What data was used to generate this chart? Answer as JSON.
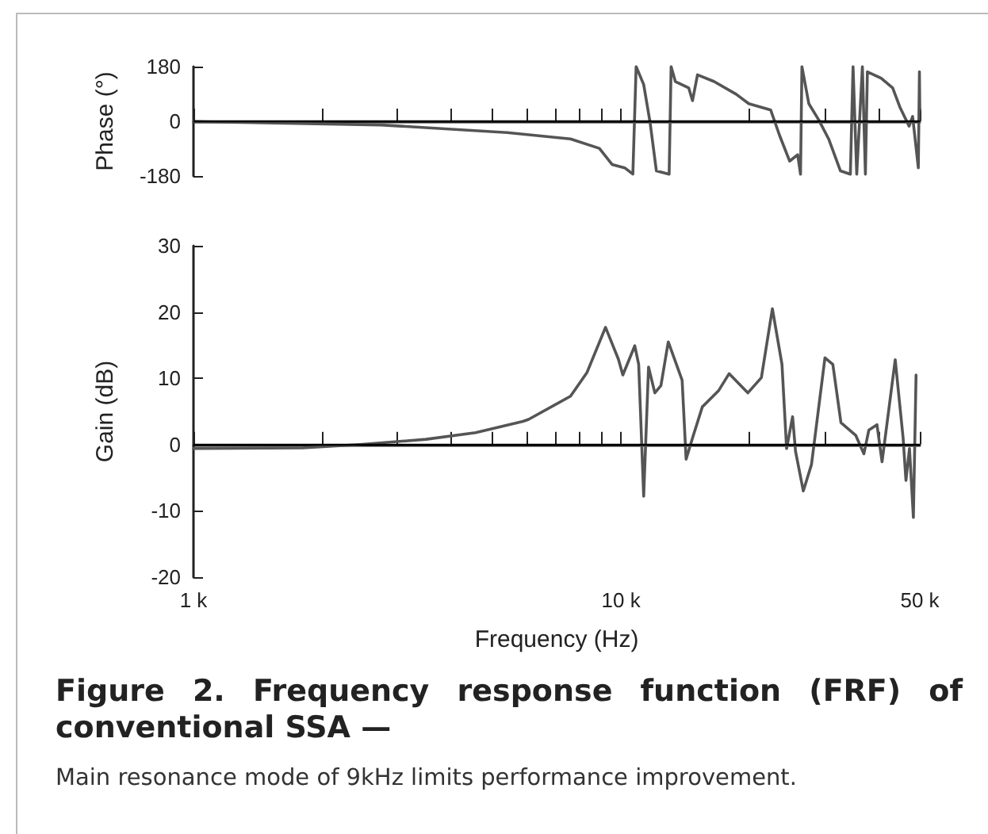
{
  "chart_data": [
    {
      "type": "line",
      "ylabel": "Phase (°)",
      "xlim": [
        1000,
        50000
      ],
      "ylim": [
        -180,
        180
      ],
      "yticks": [
        -180,
        0,
        180
      ],
      "log": "x",
      "grid": false,
      "marker": "none",
      "line_style": "solid",
      "tick_labels": "y",
      "xticks": [
        {
          "value": 1000,
          "label": null
        },
        {
          "value": 2000,
          "label": null
        },
        {
          "value": 3000,
          "label": null
        },
        {
          "value": 4000,
          "label": null
        },
        {
          "value": 5000,
          "label": null
        },
        {
          "value": 6000,
          "label": null
        },
        {
          "value": 7000,
          "label": null
        },
        {
          "value": 8000,
          "label": null
        },
        {
          "value": 9000,
          "label": null
        },
        {
          "value": 10000,
          "label": null
        },
        {
          "value": 20000,
          "label": null
        },
        {
          "value": 30000,
          "label": null
        },
        {
          "value": 40000,
          "label": null
        },
        {
          "value": 50000,
          "label": null
        }
      ],
      "ref_lines": [
        {
          "axis": "y",
          "value": 0,
          "color": "#000000"
        }
      ],
      "series": [
        {
          "color": "#555555",
          "x": [
            1000,
            2740,
            5420,
            7620,
            8900,
            9530,
            10200,
            10660,
            10850,
            11300,
            11700,
            12100,
            12960,
            13100,
            13400,
            14400,
            14700,
            15100,
            16500,
            18600,
            19900,
            22400,
            23500,
            24800,
            25900,
            26300,
            26500,
            27500,
            29000,
            30600,
            32600,
            34400,
            34900,
            35600,
            36700,
            37300,
            37700,
            40600,
            43200,
            44900,
            47200,
            48100,
            49600,
            49900,
            50000
          ],
          "values": [
            -1,
            -12,
            -37,
            -58,
            -89,
            -142,
            -153,
            -174,
            180,
            121,
            -5,
            -163,
            -174,
            180,
            131,
            110,
            68,
            153,
            131,
            89,
            58,
            37,
            -47,
            -131,
            -110,
            -174,
            180,
            58,
            5,
            -58,
            -163,
            -174,
            180,
            -174,
            180,
            -174,
            163,
            142,
            110,
            47,
            -16,
            16,
            -153,
            163,
            37
          ]
        }
      ]
    },
    {
      "type": "line",
      "ylabel": "Gain (dB)",
      "xlabel": "Frequency (Hz)",
      "xlim": [
        1000,
        50000
      ],
      "ylim": [
        -20,
        30
      ],
      "yticks": [
        -20,
        -10,
        0,
        10,
        20,
        30
      ],
      "log": "x",
      "grid": false,
      "marker": "none",
      "line_style": "solid",
      "xticks": [
        {
          "value": 1000,
          "label": "1 k"
        },
        {
          "value": 2000,
          "label": null
        },
        {
          "value": 3000,
          "label": null
        },
        {
          "value": 4000,
          "label": null
        },
        {
          "value": 5000,
          "label": null
        },
        {
          "value": 6000,
          "label": null
        },
        {
          "value": 7000,
          "label": null
        },
        {
          "value": 8000,
          "label": null
        },
        {
          "value": 9000,
          "label": null
        },
        {
          "value": 10000,
          "label": "10 k"
        },
        {
          "value": 20000,
          "label": null
        },
        {
          "value": 30000,
          "label": null
        },
        {
          "value": 40000,
          "label": null
        },
        {
          "value": 50000,
          "label": "50 k"
        }
      ],
      "ref_lines": [
        {
          "axis": "y",
          "value": 0,
          "color": "#000000"
        }
      ],
      "annotations": [
        "Figure 2. Frequency response function (FRF) of conventional SSA —",
        "Main resonance mode of 9kHz limits performance improvement."
      ],
      "series": [
        {
          "color": "#555555",
          "x": [
            1000,
            1800,
            2450,
            3500,
            4570,
            5900,
            6080,
            7620,
            8330,
            9200,
            9860,
            10100,
            10770,
            11000,
            11300,
            11600,
            12000,
            12400,
            12900,
            13900,
            14200,
            14700,
            15500,
            16900,
            17900,
            19800,
            21300,
            22600,
            23800,
            24400,
            25200,
            25600,
            26700,
            27900,
            30000,
            31300,
            32700,
            35400,
            37000,
            38000,
            39700,
            40800,
            43800,
            45700,
            46400,
            47300,
            48300,
            49000
          ],
          "values": [
            -0.6,
            -0.5,
            0,
            0.8,
            1.8,
            3.5,
            3.8,
            7.3,
            10.9,
            17.7,
            12.9,
            10.5,
            14.9,
            12.1,
            -7.8,
            11.7,
            7.8,
            8.9,
            15.5,
            9.7,
            -2.2,
            1.0,
            5.7,
            8.1,
            10.7,
            7.8,
            10.1,
            20.5,
            12.1,
            -0.6,
            4.2,
            -1.0,
            -7.0,
            -3.0,
            13.1,
            12.1,
            3.3,
            1.4,
            -1.4,
            2.2,
            3.0,
            -2.6,
            12.8,
            1.0,
            -5.4,
            -0.6,
            -11.0,
            10.5
          ]
        }
      ]
    }
  ]
}
